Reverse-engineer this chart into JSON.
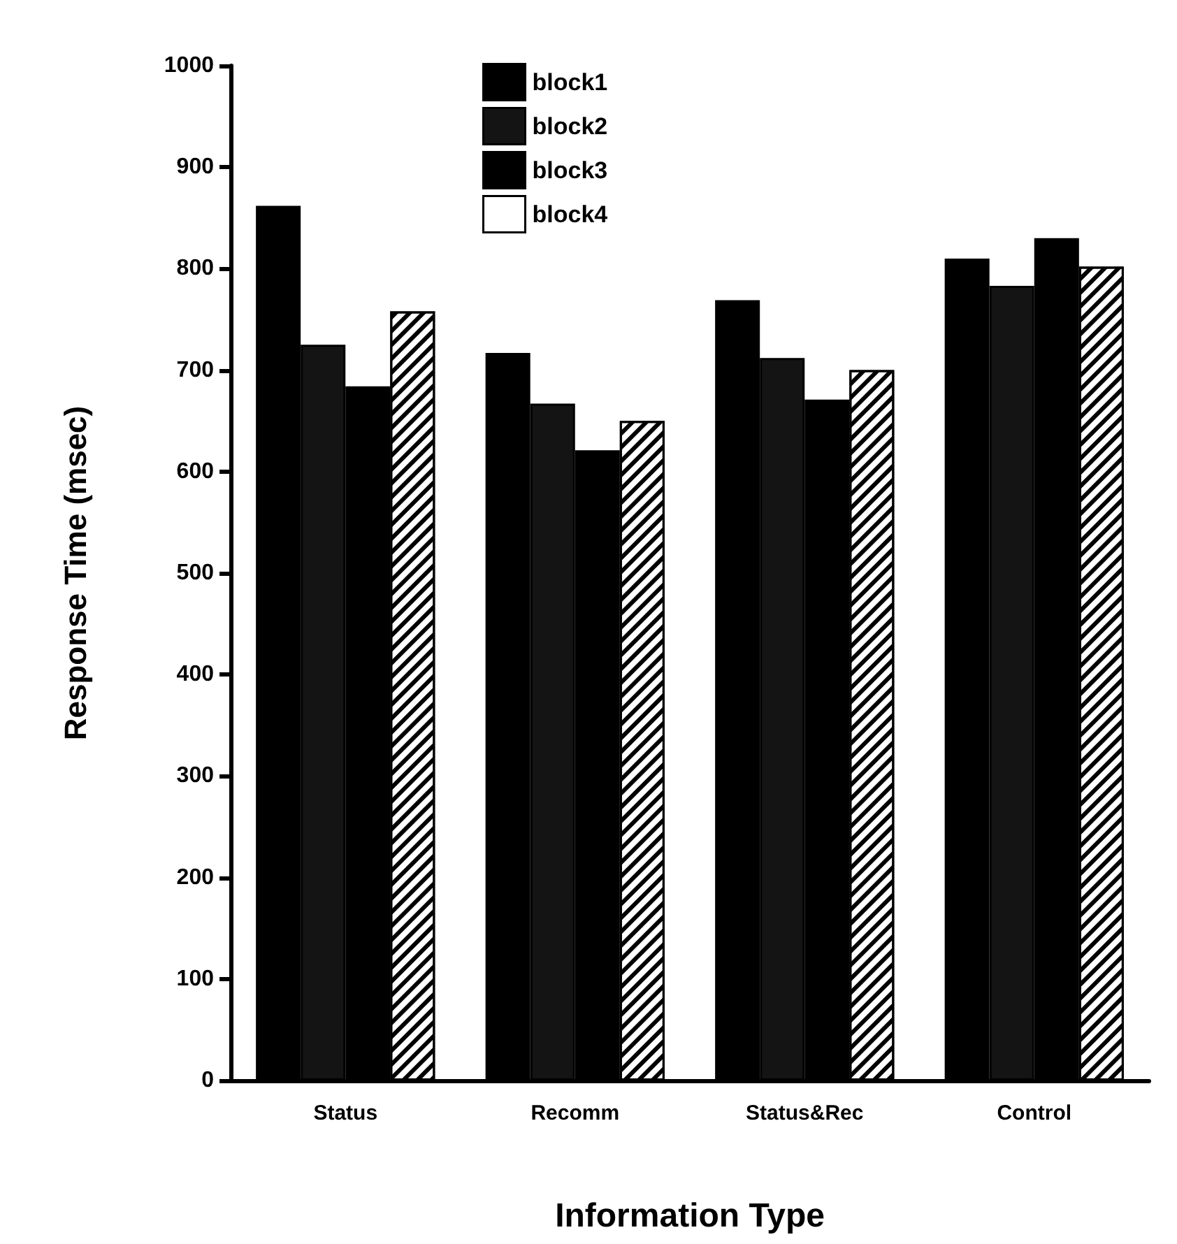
{
  "chart_data": {
    "type": "bar",
    "xlabel": "Information Type",
    "ylabel": "Response Time (msec)",
    "categories": [
      "Status",
      "Recomm",
      "Status&Rec",
      "Control"
    ],
    "series": [
      {
        "name": "block1",
        "color": "#000000",
        "values": [
          862,
          717,
          769,
          810
        ]
      },
      {
        "name": "block2",
        "color": "#141414",
        "values": [
          725,
          667,
          712,
          783
        ]
      },
      {
        "name": "block3",
        "color": "#000000",
        "values": [
          684,
          621,
          671,
          830
        ]
      },
      {
        "name": "block4",
        "color": "#ffffff",
        "values": [
          758,
          650,
          700,
          802
        ]
      }
    ],
    "ylim": [
      0,
      1000
    ],
    "yticks": [
      0,
      100,
      200,
      300,
      400,
      500,
      600,
      700,
      800,
      900,
      1000
    ],
    "grid": false,
    "legend": "top"
  }
}
